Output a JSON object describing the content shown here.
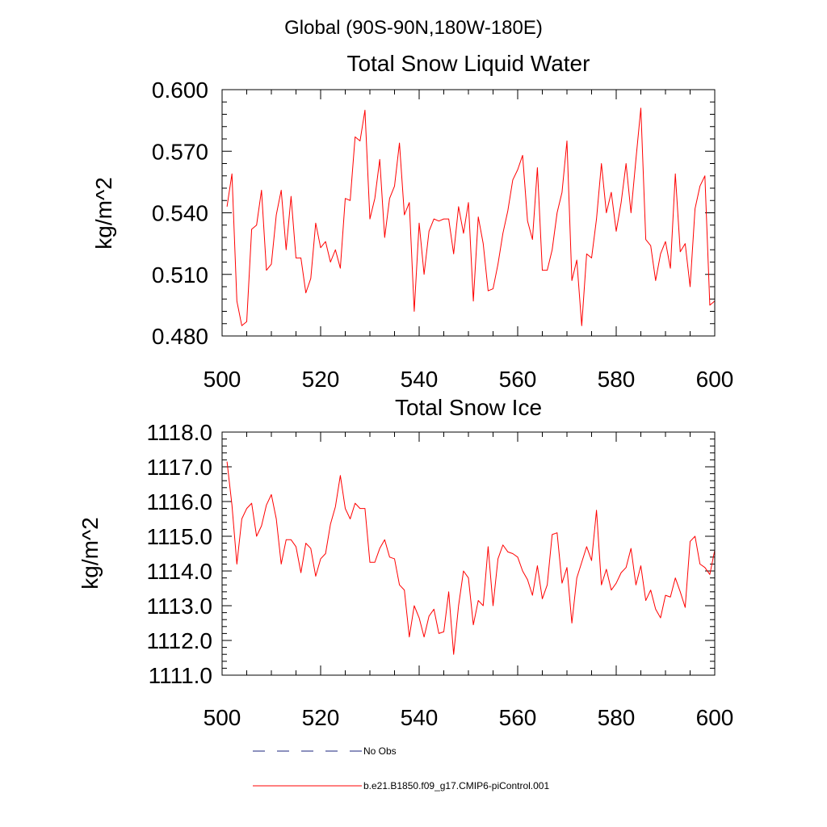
{
  "figure": {
    "suptitle": "Global (90S-90N,180W-180E)"
  },
  "legend": {
    "entries": [
      {
        "label": "No Obs",
        "color": "#1a237e",
        "style": "dashed"
      },
      {
        "label": "b.e21.B1850.f09_g17.CMIP6-piControl.001",
        "color": "#ff0000",
        "style": "solid"
      }
    ]
  },
  "chart_data": [
    {
      "type": "line",
      "title": "Total Snow Liquid Water",
      "xlabel": "",
      "ylabel": "kg/m^2",
      "xlim": [
        500,
        600
      ],
      "ylim": [
        0.48,
        0.6
      ],
      "xticks": [
        500,
        520,
        540,
        560,
        580,
        600
      ],
      "xtick_labels": [
        "500",
        "520",
        "540",
        "560",
        "580",
        "600"
      ],
      "yticks": [
        0.48,
        0.51,
        0.54,
        0.57,
        0.6
      ],
      "ytick_labels": [
        "0.480",
        "0.510",
        "0.540",
        "0.570",
        "0.600"
      ],
      "y_minor_step": 0.006,
      "x_minor_step": 5,
      "series": [
        {
          "name": "b.e21.B1850.f09_g17.CMIP6-piControl.001",
          "color": "#ff0000",
          "x": [
            501,
            502,
            503,
            504,
            505,
            506,
            507,
            508,
            509,
            510,
            511,
            512,
            513,
            514,
            515,
            516,
            517,
            518,
            519,
            520,
            521,
            522,
            523,
            524,
            525,
            526,
            527,
            528,
            529,
            530,
            531,
            532,
            533,
            534,
            535,
            536,
            537,
            538,
            539,
            540,
            541,
            542,
            543,
            544,
            545,
            546,
            547,
            548,
            549,
            550,
            551,
            552,
            553,
            554,
            555,
            556,
            557,
            558,
            559,
            560,
            561,
            562,
            563,
            564,
            565,
            566,
            567,
            568,
            569,
            570,
            571,
            572,
            573,
            574,
            575,
            576,
            577,
            578,
            579,
            580,
            581,
            582,
            583,
            584,
            585,
            586,
            587,
            588,
            589,
            590,
            591,
            592,
            593,
            594,
            595,
            596,
            597,
            598,
            599,
            600
          ],
          "values": [
            0.543,
            0.559,
            0.497,
            0.485,
            0.487,
            0.532,
            0.534,
            0.551,
            0.512,
            0.515,
            0.539,
            0.551,
            0.522,
            0.548,
            0.518,
            0.518,
            0.501,
            0.508,
            0.535,
            0.523,
            0.526,
            0.516,
            0.522,
            0.513,
            0.547,
            0.546,
            0.577,
            0.575,
            0.59,
            0.537,
            0.547,
            0.566,
            0.528,
            0.547,
            0.553,
            0.574,
            0.539,
            0.545,
            0.492,
            0.535,
            0.51,
            0.531,
            0.537,
            0.536,
            0.537,
            0.537,
            0.52,
            0.543,
            0.53,
            0.545,
            0.497,
            0.538,
            0.525,
            0.502,
            0.503,
            0.515,
            0.53,
            0.541,
            0.556,
            0.561,
            0.568,
            0.536,
            0.527,
            0.562,
            0.512,
            0.512,
            0.522,
            0.54,
            0.55,
            0.575,
            0.507,
            0.517,
            0.485,
            0.52,
            0.518,
            0.537,
            0.564,
            0.54,
            0.55,
            0.531,
            0.545,
            0.564,
            0.54,
            0.566,
            0.591,
            0.527,
            0.524,
            0.507,
            0.52,
            0.526,
            0.513,
            0.559,
            0.521,
            0.525,
            0.504,
            0.542,
            0.553,
            0.558,
            0.495,
            0.497
          ]
        }
      ]
    },
    {
      "type": "line",
      "title": "Total Snow Ice",
      "xlabel": "",
      "ylabel": "kg/m^2",
      "xlim": [
        500,
        600
      ],
      "ylim": [
        1111.0,
        1118.0
      ],
      "xticks": [
        500,
        520,
        540,
        560,
        580,
        600
      ],
      "xtick_labels": [
        "500",
        "520",
        "540",
        "560",
        "580",
        "600"
      ],
      "yticks": [
        1111,
        1112,
        1113,
        1114,
        1115,
        1116,
        1117,
        1118
      ],
      "ytick_labels": [
        "1111.0",
        "1112.0",
        "1113.0",
        "1114.0",
        "1115.0",
        "1116.0",
        "1117.0",
        "1118.0"
      ],
      "y_minor_step": 0.2,
      "x_minor_step": 5,
      "series": [
        {
          "name": "b.e21.B1850.f09_g17.CMIP6-piControl.001",
          "color": "#ff0000",
          "x": [
            501,
            502,
            503,
            504,
            505,
            506,
            507,
            508,
            509,
            510,
            511,
            512,
            513,
            514,
            515,
            516,
            517,
            518,
            519,
            520,
            521,
            522,
            523,
            524,
            525,
            526,
            527,
            528,
            529,
            530,
            531,
            532,
            533,
            534,
            535,
            536,
            537,
            538,
            539,
            540,
            541,
            542,
            543,
            544,
            545,
            546,
            547,
            548,
            549,
            550,
            551,
            552,
            553,
            554,
            555,
            556,
            557,
            558,
            559,
            560,
            561,
            562,
            563,
            564,
            565,
            566,
            567,
            568,
            569,
            570,
            571,
            572,
            573,
            574,
            575,
            576,
            577,
            578,
            579,
            580,
            581,
            582,
            583,
            584,
            585,
            586,
            587,
            588,
            589,
            590,
            591,
            592,
            593,
            594,
            595,
            596,
            597,
            598,
            599,
            600
          ],
          "values": [
            1117.15,
            1115.9,
            1114.2,
            1115.5,
            1115.8,
            1115.95,
            1115.0,
            1115.3,
            1115.9,
            1116.2,
            1115.5,
            1114.2,
            1114.9,
            1114.9,
            1114.7,
            1113.95,
            1114.8,
            1114.65,
            1113.85,
            1114.35,
            1114.5,
            1115.35,
            1115.85,
            1116.75,
            1115.8,
            1115.5,
            1115.95,
            1115.8,
            1115.8,
            1114.25,
            1114.25,
            1114.65,
            1114.9,
            1114.4,
            1114.35,
            1113.6,
            1113.45,
            1112.1,
            1113.0,
            1112.65,
            1112.1,
            1112.7,
            1112.9,
            1112.2,
            1112.25,
            1113.4,
            1111.6,
            1113.0,
            1114.0,
            1113.8,
            1112.45,
            1113.15,
            1113.0,
            1114.7,
            1113.0,
            1114.35,
            1114.75,
            1114.55,
            1114.5,
            1114.4,
            1114.0,
            1113.75,
            1113.3,
            1114.15,
            1113.2,
            1113.6,
            1115.05,
            1115.1,
            1113.65,
            1114.1,
            1112.5,
            1113.8,
            1114.25,
            1114.7,
            1114.3,
            1115.75,
            1113.6,
            1114.05,
            1113.45,
            1113.65,
            1113.95,
            1114.1,
            1114.65,
            1113.6,
            1114.15,
            1113.15,
            1113.45,
            1112.9,
            1112.65,
            1113.3,
            1113.25,
            1113.8,
            1113.4,
            1112.95,
            1114.85,
            1115.0,
            1114.2,
            1114.1,
            1113.9,
            1114.6
          ]
        }
      ]
    }
  ]
}
